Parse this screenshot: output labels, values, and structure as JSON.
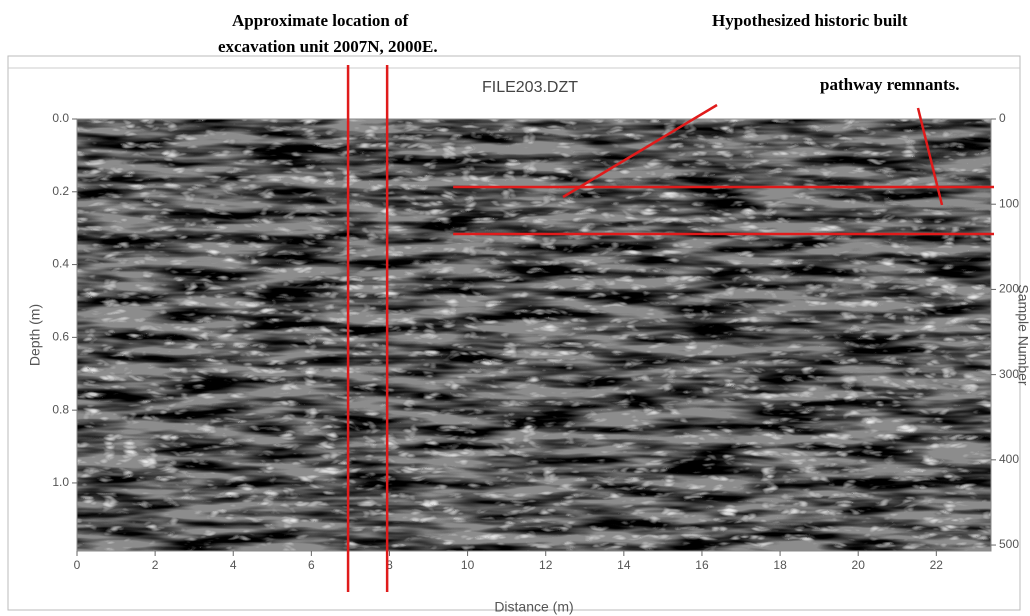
{
  "chart_data": {
    "type": "radargram",
    "title": "FILE203.DZT",
    "xlabel": "Distance (m)",
    "ylabel": "Depth (m)",
    "y2label": "Sample Number",
    "xlim": [
      0,
      23.4
    ],
    "xticks": [
      0,
      2,
      4,
      6,
      8,
      10,
      12,
      14,
      16,
      18,
      20,
      22
    ],
    "ylim": [
      1.187,
      0
    ],
    "yticks": [
      {
        "value": 0,
        "label": "0.0"
      },
      {
        "value": 0.2,
        "label": "0.2"
      },
      {
        "value": 0.4,
        "label": "0.4"
      },
      {
        "value": 0.6,
        "label": "0.6"
      },
      {
        "value": 0.8,
        "label": "0.8"
      },
      {
        "value": 1.0,
        "label": "1.0"
      }
    ],
    "y2lim": [
      0,
      507
    ],
    "y2ticks": [
      0,
      100,
      200,
      300,
      400,
      500
    ],
    "marker_color": "#e01b1b",
    "vlines": [
      6.94,
      7.94
    ],
    "hlines": [
      {
        "y": 0.187,
        "x0": 9.63
      },
      {
        "y": 0.316,
        "x0": 9.63
      }
    ],
    "annotations": [
      {
        "lines": [
          "Approximate location of",
          "excavation unit 2007N, 2000E."
        ]
      },
      {
        "lines": [
          "Hypothesized historic built",
          "pathway remnants."
        ]
      }
    ]
  }
}
